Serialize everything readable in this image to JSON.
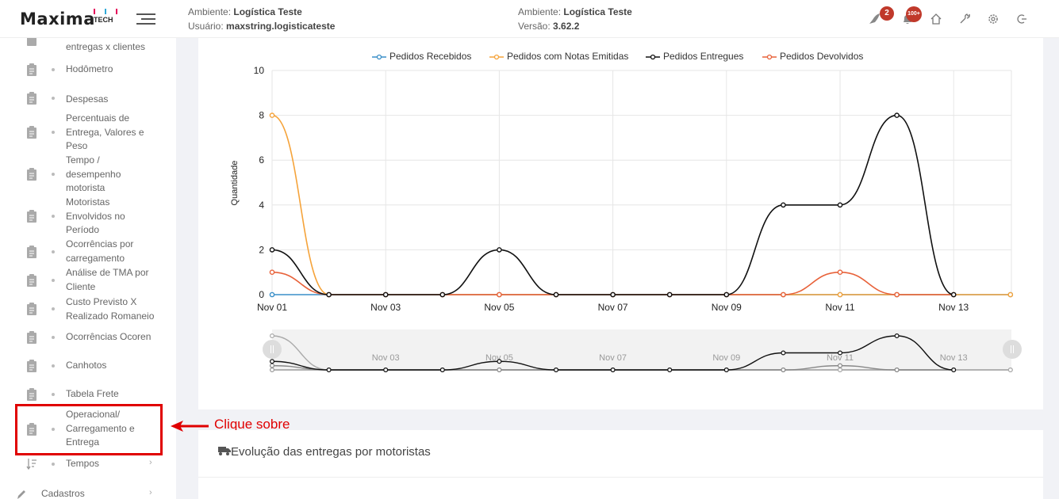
{
  "header": {
    "logo_text": "Maxima",
    "logo_suffix": "TECH",
    "env_label_1": "Ambiente:",
    "env_value_1": "Logística Teste",
    "user_label": "Usuário:",
    "user_value": "maxstring.logisticateste",
    "env_label_2": "Ambiente:",
    "env_value_2": "Logística Teste",
    "version_label": "Versão:",
    "version_value": "3.62.2",
    "badge_rocket": "2",
    "badge_bell": "100+"
  },
  "sidebar": {
    "items": [
      {
        "label": "entregas x clientes"
      },
      {
        "label": "Hodômetro"
      },
      {
        "label": "Despesas"
      },
      {
        "label": "Percentuais de Entrega, Valores e Peso"
      },
      {
        "label": "Tempo / desempenho motorista"
      },
      {
        "label": "Motoristas Envolvidos no Período"
      },
      {
        "label": "Ocorrências por carregamento"
      },
      {
        "label": "Análise de TMA por Cliente"
      },
      {
        "label": "Custo Previsto X Realizado Romaneio"
      },
      {
        "label": "Ocorrências Ocoren"
      },
      {
        "label": "Canhotos"
      },
      {
        "label": "Tabela Frete"
      },
      {
        "label": "Operacional/ Carregamento e Entrega"
      },
      {
        "label": "Tempos"
      },
      {
        "label": "Cadastros"
      }
    ]
  },
  "annotation": {
    "text": "Clique sobre"
  },
  "card2": {
    "title": "Evolução das entregas por motoristas"
  },
  "chart_data": {
    "type": "line",
    "ylabel": "Quantidade",
    "xlabel": "",
    "ylim": [
      0,
      10
    ],
    "yticks": [
      "0",
      "2",
      "4",
      "6",
      "8",
      "10"
    ],
    "x": [
      "Nov 01",
      "Nov 02",
      "Nov 03",
      "Nov 04",
      "Nov 05",
      "Nov 06",
      "Nov 07",
      "Nov 08",
      "Nov 09",
      "Nov 10",
      "Nov 11",
      "Nov 12",
      "Nov 13",
      "Nov 14"
    ],
    "xtick_labels": [
      "Nov 01",
      "Nov 03",
      "Nov 05",
      "Nov 07",
      "Nov 09",
      "Nov 11",
      "Nov 13"
    ],
    "navigator_labels": [
      "Nov 03",
      "Nov 05",
      "Nov 07",
      "Nov 09",
      "Nov 11",
      "Nov 13"
    ],
    "series": [
      {
        "name": "Pedidos Recebidos",
        "color": "#3a8fc8",
        "values": [
          0,
          0,
          0,
          0,
          0,
          0,
          0,
          0,
          0,
          0,
          0,
          0,
          0,
          0
        ]
      },
      {
        "name": "Pedidos com Notas Emitidas",
        "color": "#f5a33a",
        "values": [
          8,
          0,
          0,
          0,
          0,
          0,
          0,
          0,
          0,
          0,
          0,
          0,
          0,
          0
        ]
      },
      {
        "name": "Pedidos Entregues",
        "color": "#111111",
        "values": [
          2,
          0,
          0,
          0,
          2,
          0,
          0,
          0,
          0,
          4,
          4,
          8,
          0,
          null
        ]
      },
      {
        "name": "Pedidos Devolvidos",
        "color": "#e8623a",
        "values": [
          1,
          0,
          0,
          0,
          0,
          0,
          0,
          0,
          0,
          0,
          1,
          0,
          0,
          null
        ]
      }
    ],
    "grid": true,
    "legend_position": "top"
  },
  "colors": {
    "accent": "#e00000",
    "sidebar_bg": "#ffffff",
    "page_bg": "#f1f2f6"
  }
}
